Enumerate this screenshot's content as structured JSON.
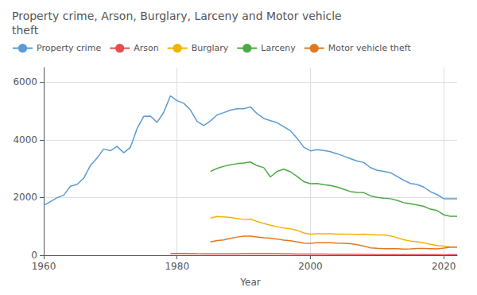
{
  "chart_data": {
    "type": "line",
    "title": "Property crime, Arson, Burglary, Larceny and Motor vehicle\ntheft",
    "xlabel": "Year",
    "xlim": [
      1960,
      2022
    ],
    "xticks": [
      1960,
      1980,
      2000,
      2020
    ],
    "ylim": [
      0,
      6500
    ],
    "yticks": [
      0,
      2000,
      4000,
      6000
    ],
    "grid": true,
    "legend": "upper left",
    "series": [
      {
        "name": "Property crime",
        "color": "#5b9bd5",
        "x": [
          1960,
          1961,
          1962,
          1963,
          1964,
          1965,
          1966,
          1967,
          1968,
          1969,
          1970,
          1971,
          1972,
          1973,
          1974,
          1975,
          1976,
          1977,
          1978,
          1979,
          1980,
          1981,
          1982,
          1983,
          1984,
          1985,
          1986,
          1987,
          1988,
          1989,
          1990,
          1991,
          1992,
          1993,
          1994,
          1995,
          1996,
          1997,
          1998,
          1999,
          2000,
          2001,
          2002,
          2003,
          2004,
          2005,
          2006,
          2007,
          2008,
          2009,
          2010,
          2011,
          2012,
          2013,
          2014,
          2015,
          2016,
          2017,
          2018,
          2019,
          2020,
          2021,
          2022
        ],
        "values": [
          1726,
          1858,
          1993,
          2083,
          2388,
          2449,
          2670,
          3111,
          3370,
          3680,
          3621,
          3769,
          3550,
          3737,
          4389,
          4811,
          4819,
          4602,
          4951,
          5522,
          5353,
          5264,
          5033,
          4637,
          4491,
          4651,
          4863,
          4941,
          5027,
          5077,
          5073,
          5140,
          4903,
          4738,
          4660,
          4591,
          4451,
          4312,
          4052,
          3743,
          3618,
          3658,
          3631,
          3588,
          3514,
          3432,
          3346,
          3264,
          3212,
          3036,
          2942,
          2908,
          2859,
          2731,
          2596,
          2487,
          2450,
          2362,
          2200,
          2100,
          1958,
          1954,
          1954
        ]
      },
      {
        "name": "Arson",
        "color": "#e05050",
        "x": [
          1979,
          1980,
          1981,
          1982,
          1983,
          1984,
          1985,
          1986,
          1987,
          1988,
          1989,
          1990,
          1991,
          1992,
          1993,
          1994,
          1995,
          1996,
          1997,
          1998,
          1999,
          2000,
          2001,
          2002,
          2003,
          2004,
          2005,
          2006,
          2007,
          2008,
          2009,
          2010,
          2011,
          2012,
          2013,
          2014,
          2015,
          2016,
          2017,
          2018,
          2019,
          2020,
          2021,
          2022
        ],
        "values": [
          55,
          60,
          62,
          58,
          52,
          49,
          47,
          50,
          50,
          49,
          51,
          55,
          58,
          56,
          57,
          55,
          52,
          48,
          46,
          43,
          40,
          38,
          38,
          38,
          37,
          36,
          34,
          32,
          31,
          28,
          26,
          24,
          23,
          22,
          21,
          20,
          20,
          19,
          20,
          19,
          18,
          17,
          18,
          18
        ]
      },
      {
        "name": "Burglary",
        "color": "#f0b400",
        "x": [
          1985,
          1986,
          1987,
          1988,
          1989,
          1990,
          1991,
          1992,
          1993,
          1994,
          1995,
          1996,
          1997,
          1998,
          1999,
          2000,
          2001,
          2002,
          2003,
          2004,
          2005,
          2006,
          2007,
          2008,
          2009,
          2010,
          2011,
          2012,
          2013,
          2014,
          2015,
          2016,
          2017,
          2018,
          2019,
          2020,
          2021,
          2022
        ],
        "values": [
          1287,
          1345,
          1330,
          1310,
          1276,
          1236,
          1252,
          1168,
          1099,
          1042,
          988,
          945,
          919,
          863,
          770,
          728,
          741,
          747,
          741,
          730,
          727,
          729,
          723,
          730,
          716,
          699,
          702,
          671,
          610,
          538,
          492,
          469,
          430,
          376,
          340,
          314,
          282,
          282
        ]
      },
      {
        "name": "Larceny",
        "color": "#4aaa44",
        "x": [
          1985,
          1986,
          1987,
          1988,
          1989,
          1990,
          1991,
          1992,
          1993,
          1994,
          1995,
          1996,
          1997,
          1998,
          1999,
          2000,
          2001,
          2002,
          2003,
          2004,
          2005,
          2006,
          2007,
          2008,
          2009,
          2010,
          2011,
          2012,
          2013,
          2014,
          2015,
          2016,
          2017,
          2018,
          2019,
          2020,
          2021,
          2022
        ],
        "values": [
          2901,
          3010,
          3081,
          3135,
          3171,
          3194,
          3229,
          3103,
          3033,
          2713,
          2907,
          2980,
          2892,
          2729,
          2550,
          2477,
          2485,
          2445,
          2416,
          2362,
          2287,
          2206,
          2177,
          2167,
          2061,
          2005,
          1977,
          1959,
          1901,
          1821,
          1783,
          1745,
          1695,
          1595,
          1549,
          1398,
          1348,
          1348
        ]
      },
      {
        "name": "Motor vehicle theft",
        "color": "#e07820",
        "x": [
          1985,
          1986,
          1987,
          1988,
          1989,
          1990,
          1991,
          1992,
          1993,
          1994,
          1995,
          1996,
          1997,
          1998,
          1999,
          2000,
          2001,
          2002,
          2003,
          2004,
          2005,
          2006,
          2007,
          2008,
          2009,
          2010,
          2011,
          2012,
          2013,
          2014,
          2015,
          2016,
          2017,
          2018,
          2019,
          2020,
          2021,
          2022
        ],
        "values": [
          462,
          508,
          529,
          583,
          630,
          658,
          659,
          632,
          606,
          591,
          561,
          526,
          505,
          459,
          423,
          412,
          431,
          432,
          433,
          421,
          416,
          398,
          363,
          315,
          258,
          238,
          229,
          230,
          229,
          216,
          220,
          237,
          237,
          229,
          219,
          246,
          284,
          282
        ]
      }
    ]
  }
}
